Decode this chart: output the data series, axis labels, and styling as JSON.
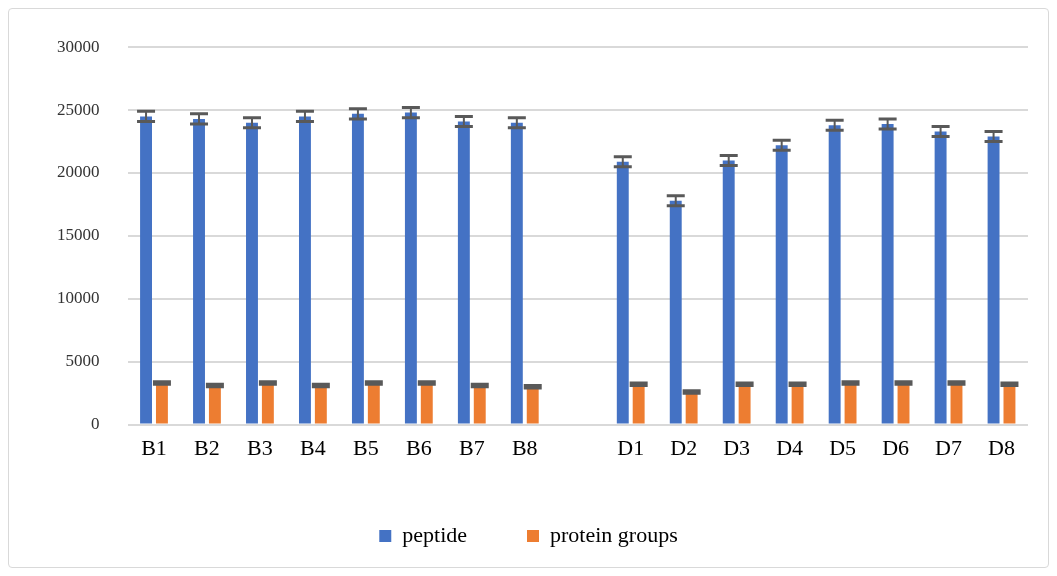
{
  "chart_data": {
    "type": "bar",
    "categories": [
      "B1",
      "B2",
      "B3",
      "B4",
      "B5",
      "B6",
      "B7",
      "B8",
      null,
      "D1",
      "D2",
      "D3",
      "D4",
      "D5",
      "D6",
      "D7",
      "D8"
    ],
    "series": [
      {
        "name": "peptide",
        "color": "#4472c4",
        "values": [
          24500,
          24300,
          24000,
          24500,
          24700,
          24800,
          24100,
          24000,
          null,
          20900,
          17800,
          21000,
          22200,
          23800,
          23900,
          23300,
          22900
        ],
        "errors": [
          400,
          400,
          400,
          400,
          400,
          400,
          400,
          400,
          null,
          400,
          400,
          400,
          400,
          400,
          400,
          400,
          400
        ]
      },
      {
        "name": "protein groups",
        "color": "#ed7d31",
        "values": [
          3300,
          3100,
          3300,
          3100,
          3300,
          3300,
          3100,
          3000,
          null,
          3200,
          2600,
          3200,
          3200,
          3300,
          3300,
          3300,
          3200
        ],
        "errors": [
          100,
          100,
          100,
          100,
          100,
          100,
          100,
          100,
          null,
          100,
          100,
          100,
          100,
          100,
          100,
          100,
          100
        ]
      }
    ],
    "ylim": [
      0,
      30000
    ],
    "yticks": [
      0,
      5000,
      10000,
      15000,
      20000,
      25000,
      30000
    ],
    "grid": "y",
    "legend": "bottom"
  }
}
